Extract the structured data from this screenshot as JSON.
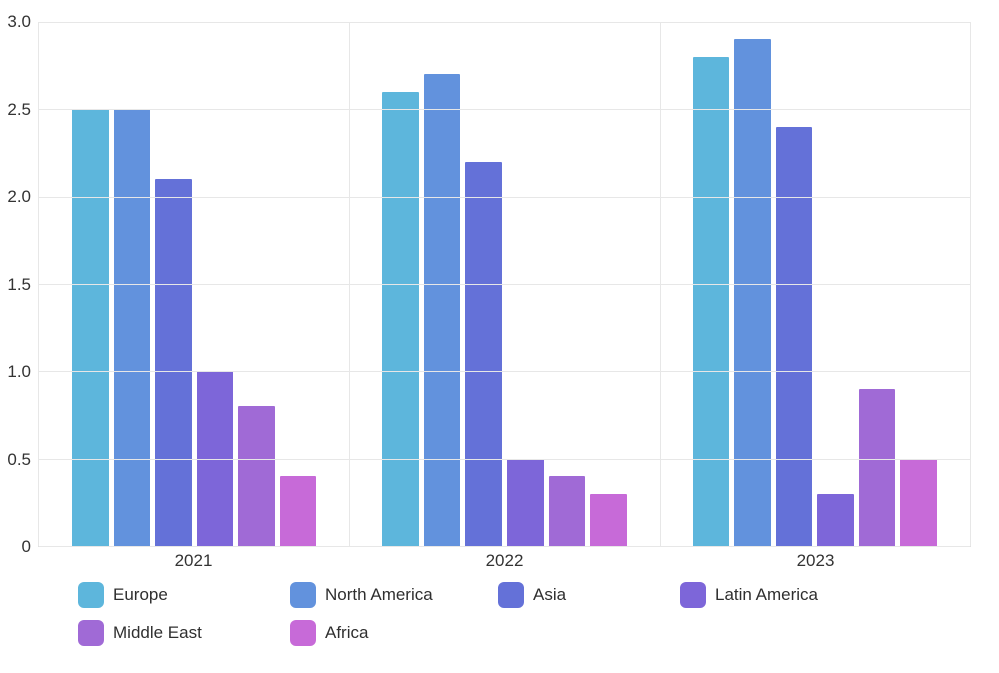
{
  "chart_data": {
    "type": "bar",
    "title": "",
    "xlabel": "",
    "ylabel": "",
    "categories": [
      "2021",
      "2022",
      "2023"
    ],
    "series": [
      {
        "name": "Europe",
        "color": "#5db6dc",
        "values": [
          2.5,
          2.6,
          2.8
        ]
      },
      {
        "name": "North America",
        "color": "#6292dd",
        "values": [
          2.5,
          2.7,
          2.9
        ]
      },
      {
        "name": "Asia",
        "color": "#6471d8",
        "values": [
          2.1,
          2.2,
          2.4
        ]
      },
      {
        "name": "Latin America",
        "color": "#7d66d9",
        "values": [
          1.0,
          0.5,
          0.3
        ]
      },
      {
        "name": "Middle East",
        "color": "#a06ad6",
        "values": [
          0.8,
          0.4,
          0.9
        ]
      },
      {
        "name": "Africa",
        "color": "#c76ad8",
        "values": [
          0.4,
          0.3,
          0.5
        ]
      }
    ],
    "ylim": [
      0,
      3.0
    ],
    "yticks": [
      0,
      0.5,
      1.0,
      1.5,
      2.0,
      2.5,
      3.0
    ],
    "ytick_labels": [
      "0",
      "0.5",
      "1.0",
      "1.5",
      "2.0",
      "2.5",
      "3.0"
    ],
    "grid": true,
    "legend_position": "bottom"
  },
  "colors": {
    "background": "#ffffff",
    "gridline": "#e7e7e7",
    "axis_baseline": "#d9d9d9",
    "axis_text": "#333333",
    "legend_text": "#2f2f2f"
  }
}
